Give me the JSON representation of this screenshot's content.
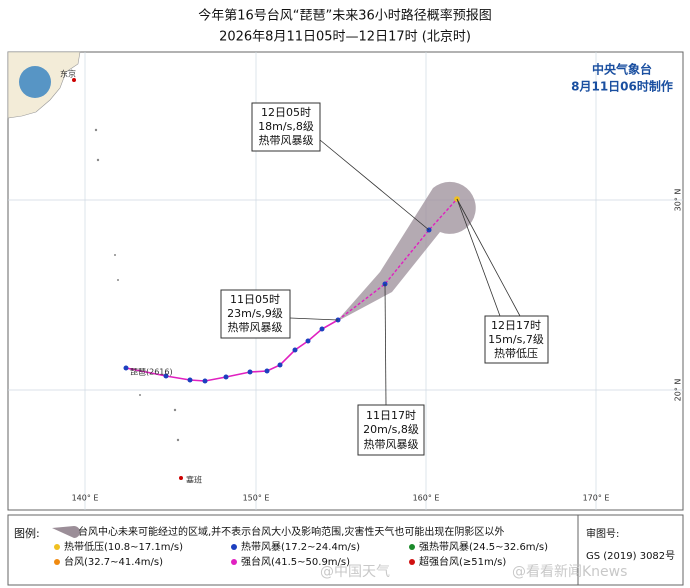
{
  "header": {
    "title": "今年第16号台风“琵琶”未来36小时路径概率预报图",
    "subtitle": "2026年8月11日05时—12日17时 (北京时)"
  },
  "agency": {
    "name": "中央气象台",
    "made": "8月11日06时制作"
  },
  "axes": {
    "lon": [
      "140° E",
      "150° E",
      "160° E",
      "170° E"
    ],
    "lat": [
      "30° N",
      "20° N"
    ]
  },
  "places": {
    "tokyo": "东京",
    "saipan": "塞班",
    "storm": "琵琶(2616)"
  },
  "callouts": [
    {
      "time": "12日05时",
      "wind": "18m/s,8级",
      "level": "热带风暴级"
    },
    {
      "time": "11日05时",
      "wind": "23m/s,9级",
      "level": "热带风暴级"
    },
    {
      "time": "11日17时",
      "wind": "20m/s,8级",
      "level": "热带风暴级"
    },
    {
      "time": "12日17时",
      "wind": "15m/s,7级",
      "level": "热带低压"
    }
  ],
  "legend": {
    "title": "图例:",
    "cone": "台风中心未来可能经过的区域,并不表示台风大小及影响范围,灾害性天气也可能出现在阴影区以外",
    "items": [
      "热带低压(10.8~17.1m/s)",
      "热带风暴(17.2~24.4m/s)",
      "强热带风暴(24.5~32.6m/s)",
      "台风(32.7~41.4m/s)",
      "强台风(41.5~50.9m/s)",
      "超强台风(≥51m/s)"
    ]
  },
  "review": {
    "label": "审图号:",
    "code": "GS (2019) 3082号"
  },
  "watermarks": [
    "@中国天气",
    "@看看新闻Knews"
  ]
}
